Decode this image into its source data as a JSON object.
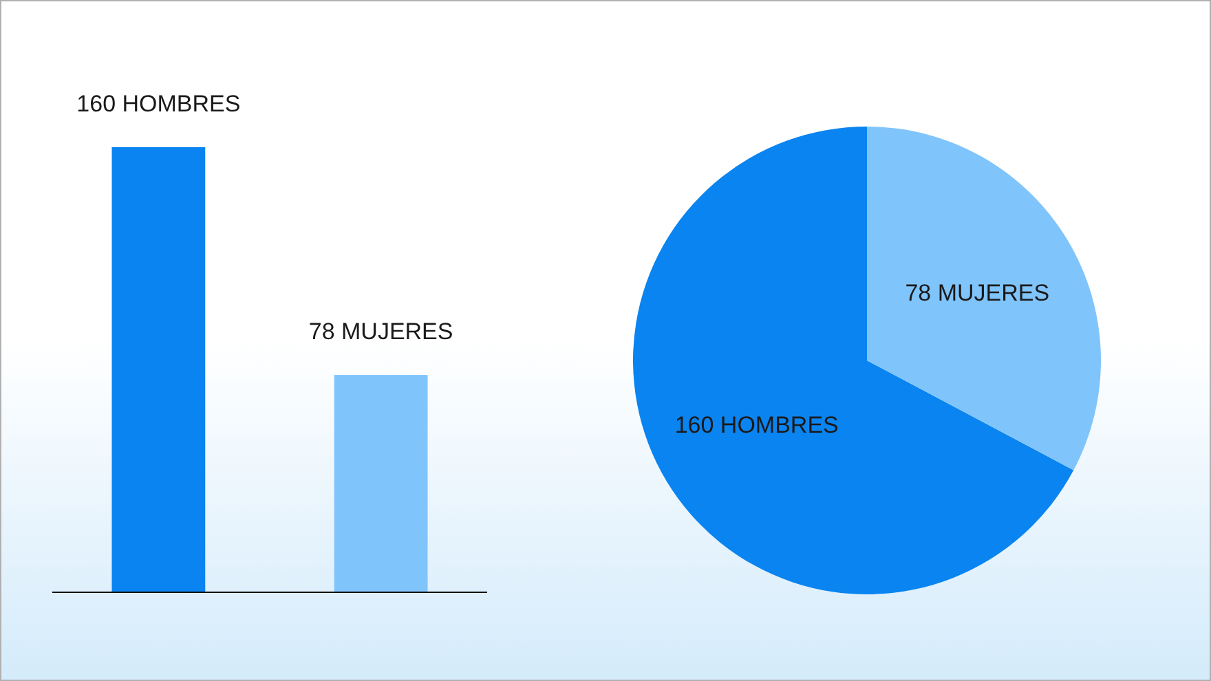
{
  "chart_data": [
    {
      "type": "bar",
      "categories": [
        null,
        null
      ],
      "values": [
        160,
        78
      ],
      "colors": [
        "#0a84f0",
        "#80c4fc"
      ],
      "value_labels": [
        "160 HOMBRES",
        "78 MUJERES"
      ]
    },
    {
      "type": "pie",
      "categories": [
        null,
        null
      ],
      "values": [
        160,
        78
      ],
      "colors": [
        "#0a84f0",
        "#80c4fc"
      ],
      "value_labels": [
        "160 HOMBRES",
        "78 MUJERES"
      ]
    }
  ]
}
